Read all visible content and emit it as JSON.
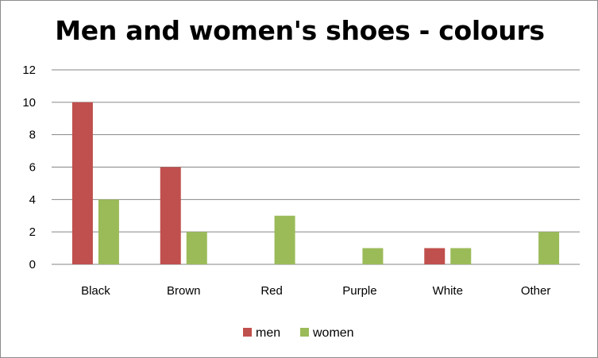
{
  "chart_data": {
    "type": "bar",
    "title": "Men and women's shoes - colours",
    "categories": [
      "Black",
      "Brown",
      "Red",
      "Purple",
      "White",
      "Other"
    ],
    "series": [
      {
        "name": "men",
        "values": [
          10,
          6,
          0,
          0,
          1,
          0
        ],
        "color": "#c0504d"
      },
      {
        "name": "women",
        "values": [
          4,
          2,
          3,
          1,
          1,
          2
        ],
        "color": "#9bbb59"
      }
    ],
    "y_ticks": [
      "0",
      "2",
      "4",
      "6",
      "8",
      "10",
      "12"
    ],
    "ylim": [
      0,
      12
    ],
    "grid": true,
    "legend_position": "bottom",
    "gridline_color": "#868686"
  }
}
